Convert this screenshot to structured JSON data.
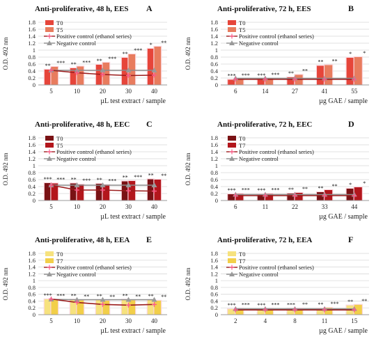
{
  "colors": {
    "EES": {
      "t0": "#e6453a",
      "t1": "#e87c5e"
    },
    "EEC": {
      "t0": "#7a1215",
      "t1": "#b3161c"
    },
    "EEA": {
      "t0": "#f6e27e",
      "t1": "#f2cf49"
    },
    "positive_line": "#9b1c1c",
    "positive_marker": "#ff5c8a",
    "negative_line": "#8c8c8c",
    "negative_marker": "#9a9a9a",
    "grid": "#d9d9d9",
    "highlight": "#fbd7df"
  },
  "chart_data": [
    {
      "panel": "A",
      "type": "bar",
      "extract": "EES",
      "title": "Anti-proliferative, 48 h, EES",
      "ylabel": "O.D. 492 nm",
      "xlabel": "µL test extract / sample",
      "ylim": [
        0,
        1.8
      ],
      "yticks": [
        "0",
        "0.2",
        "0.4",
        "0.6",
        "0.8",
        "1",
        "1.2",
        "1.4",
        "1.6",
        "1.8"
      ],
      "categories": [
        "5",
        "10",
        "20",
        "30",
        "40"
      ],
      "series": [
        {
          "name": "T0",
          "values": [
            0.44,
            0.48,
            0.58,
            0.78,
            1.04
          ]
        },
        {
          "name": "T5",
          "values": [
            0.52,
            0.53,
            0.64,
            0.88,
            1.1
          ]
        }
      ],
      "positive_control": {
        "name": "Positive control (ethanol series)",
        "values": [
          0.42,
          0.35,
          0.3,
          0.27,
          0.28
        ]
      },
      "negative_control": {
        "name": "Negative control",
        "values": [
          0.42,
          0.42,
          0.42,
          0.42,
          0.42
        ]
      },
      "annotations": [
        [
          "**",
          "***"
        ],
        [
          "**",
          "***"
        ],
        [
          "**",
          "***"
        ],
        [
          "**",
          "***"
        ],
        [
          "*",
          "**"
        ]
      ],
      "legend": "top-left"
    },
    {
      "panel": "B",
      "type": "bar",
      "extract": "EES",
      "title": "Anti-proliferative, 72 h, EES",
      "ylabel": "O.D. 492 nm",
      "xlabel": "µg GAE / sample",
      "ylim": [
        0,
        1.8
      ],
      "yticks": [
        "0",
        "0.2",
        "0.4",
        "0.6",
        "0.8",
        "1",
        "1.2",
        "1.4",
        "1.6",
        "1.8"
      ],
      "categories": [
        "6",
        "14",
        "27",
        "41",
        "55"
      ],
      "series": [
        {
          "name": "T0",
          "values": [
            0.15,
            0.16,
            0.22,
            0.55,
            0.78
          ]
        },
        {
          "name": "T5",
          "values": [
            0.16,
            0.18,
            0.29,
            0.57,
            0.8
          ]
        }
      ],
      "positive_control": {
        "name": "Positive control (ethanol series)",
        "values": [
          0.16,
          0.16,
          0.16,
          0.16,
          0.16
        ]
      },
      "negative_control": {
        "name": "Negative control",
        "values": [
          0.19,
          0.19,
          0.19,
          0.19,
          0.19
        ]
      },
      "annotations": [
        [
          "***",
          "***"
        ],
        [
          "***",
          "***"
        ],
        [
          "**",
          "**"
        ],
        [
          "**",
          "**"
        ],
        [
          "*",
          "*"
        ]
      ],
      "legend": "top-left"
    },
    {
      "panel": "C",
      "type": "bar",
      "extract": "EEC",
      "title": "Anti-proliferative, 48 h, EEC",
      "ylabel": "O.D. 492 nm",
      "xlabel": "µL test extract / sample",
      "ylim": [
        0,
        1.8
      ],
      "yticks": [
        "0",
        "0.2",
        "0.4",
        "0.6",
        "0.8",
        "1",
        "1.2",
        "1.4",
        "1.6",
        "1.8"
      ],
      "categories": [
        "5",
        "10",
        "20",
        "30",
        "40"
      ],
      "series": [
        {
          "name": "T0",
          "values": [
            0.5,
            0.49,
            0.48,
            0.55,
            0.61
          ]
        },
        {
          "name": "T5",
          "values": [
            0.49,
            0.46,
            0.45,
            0.56,
            0.6
          ]
        }
      ],
      "positive_control": {
        "name": "Positive control (ethanol series)",
        "values": [
          0.44,
          0.3,
          0.3,
          0.28,
          0.27
        ]
      },
      "negative_control": {
        "name": "Negative control",
        "values": [
          0.44,
          0.44,
          0.44,
          0.44,
          0.44
        ]
      },
      "annotations": [
        [
          "***",
          "***"
        ],
        [
          "**",
          "***"
        ],
        [
          "**",
          "***"
        ],
        [
          "**",
          "***"
        ],
        [
          "**",
          "**"
        ]
      ],
      "legend": "top-left"
    },
    {
      "panel": "D",
      "type": "bar",
      "extract": "EEC",
      "title": "Anti-proliferative, 72 h, EEC",
      "ylabel": "O.D. 492 nm",
      "xlabel": "µg GAE / sample",
      "ylim": [
        0,
        1.8
      ],
      "yticks": [
        "0",
        "0.2",
        "0.4",
        "0.6",
        "0.8",
        "1",
        "1.2",
        "1.4",
        "1.6",
        "1.8"
      ],
      "categories": [
        "6",
        "11",
        "22",
        "33",
        "44"
      ],
      "series": [
        {
          "name": "T0",
          "values": [
            0.18,
            0.18,
            0.2,
            0.24,
            0.34
          ]
        },
        {
          "name": "T7",
          "values": [
            0.19,
            0.19,
            0.22,
            0.3,
            0.38
          ]
        }
      ],
      "positive_control": {
        "name": "Positive control (ethanol series)",
        "values": [
          0.14,
          0.14,
          0.14,
          0.14,
          0.14
        ]
      },
      "negative_control": {
        "name": "Negative control",
        "values": [
          0.17,
          0.17,
          0.17,
          0.17,
          0.17
        ]
      },
      "annotations": [
        [
          "***",
          "***"
        ],
        [
          "***",
          "***"
        ],
        [
          "**",
          "**"
        ],
        [
          "**",
          "**"
        ],
        [
          "*",
          "*"
        ]
      ],
      "legend": "top-left"
    },
    {
      "panel": "E",
      "type": "bar",
      "extract": "EEA",
      "title": "Anti-proliferative, 48 h, EEA",
      "ylabel": "O.D. 492 nm",
      "xlabel": "µL test extract / sample",
      "ylim": [
        0,
        1.8
      ],
      "yticks": [
        "0",
        "0.2",
        "0.4",
        "0.6",
        "0.8",
        "1",
        "1.2",
        "1.4",
        "1.6",
        "1.8"
      ],
      "categories": [
        "5",
        "10",
        "20",
        "30",
        "40"
      ],
      "series": [
        {
          "name": "T0",
          "values": [
            0.45,
            0.44,
            0.43,
            0.44,
            0.43
          ]
        },
        {
          "name": "T7",
          "values": [
            0.44,
            0.42,
            0.41,
            0.42,
            0.41
          ]
        }
      ],
      "positive_control": {
        "name": "Positive control (ethanol series)",
        "values": [
          0.46,
          0.36,
          0.3,
          0.28,
          0.3
        ]
      },
      "negative_control": {
        "name": "Negative control",
        "values": [
          0.45,
          0.44,
          0.44,
          0.44,
          0.44
        ]
      },
      "annotations": [
        [
          "***",
          "***"
        ],
        [
          "**",
          "**"
        ],
        [
          "**",
          "**"
        ],
        [
          "**",
          "**"
        ],
        [
          "**",
          "**"
        ]
      ],
      "legend": "top-left"
    },
    {
      "panel": "F",
      "type": "bar",
      "extract": "EEA",
      "title": "Anti-proliferative, 72 h, EEA",
      "ylabel": "O.D. 492 nm",
      "xlabel": "µg GAE / sample",
      "ylim": [
        0,
        1.8
      ],
      "yticks": [
        "0",
        "0.2",
        "0.4",
        "0.6",
        "0.8",
        "1",
        "1.2",
        "1.4",
        "1.6",
        "1.8"
      ],
      "categories": [
        "2",
        "4",
        "8",
        "11",
        "15"
      ],
      "series": [
        {
          "name": "T0",
          "values": [
            0.16,
            0.16,
            0.17,
            0.18,
            0.27
          ]
        },
        {
          "name": "T7",
          "values": [
            0.17,
            0.17,
            0.18,
            0.2,
            0.29
          ]
        }
      ],
      "positive_control": {
        "name": "Positive control (ethanol series)",
        "values": [
          0.14,
          0.14,
          0.14,
          0.14,
          0.14
        ]
      },
      "negative_control": {
        "name": "Negative control",
        "values": [
          0.17,
          0.17,
          0.17,
          0.17,
          0.17
        ]
      },
      "annotations": [
        [
          "***",
          "***"
        ],
        [
          "***",
          "***"
        ],
        [
          "***",
          "**"
        ],
        [
          "**",
          "***"
        ],
        [
          "**",
          "**"
        ]
      ],
      "legend": "top-left"
    }
  ]
}
